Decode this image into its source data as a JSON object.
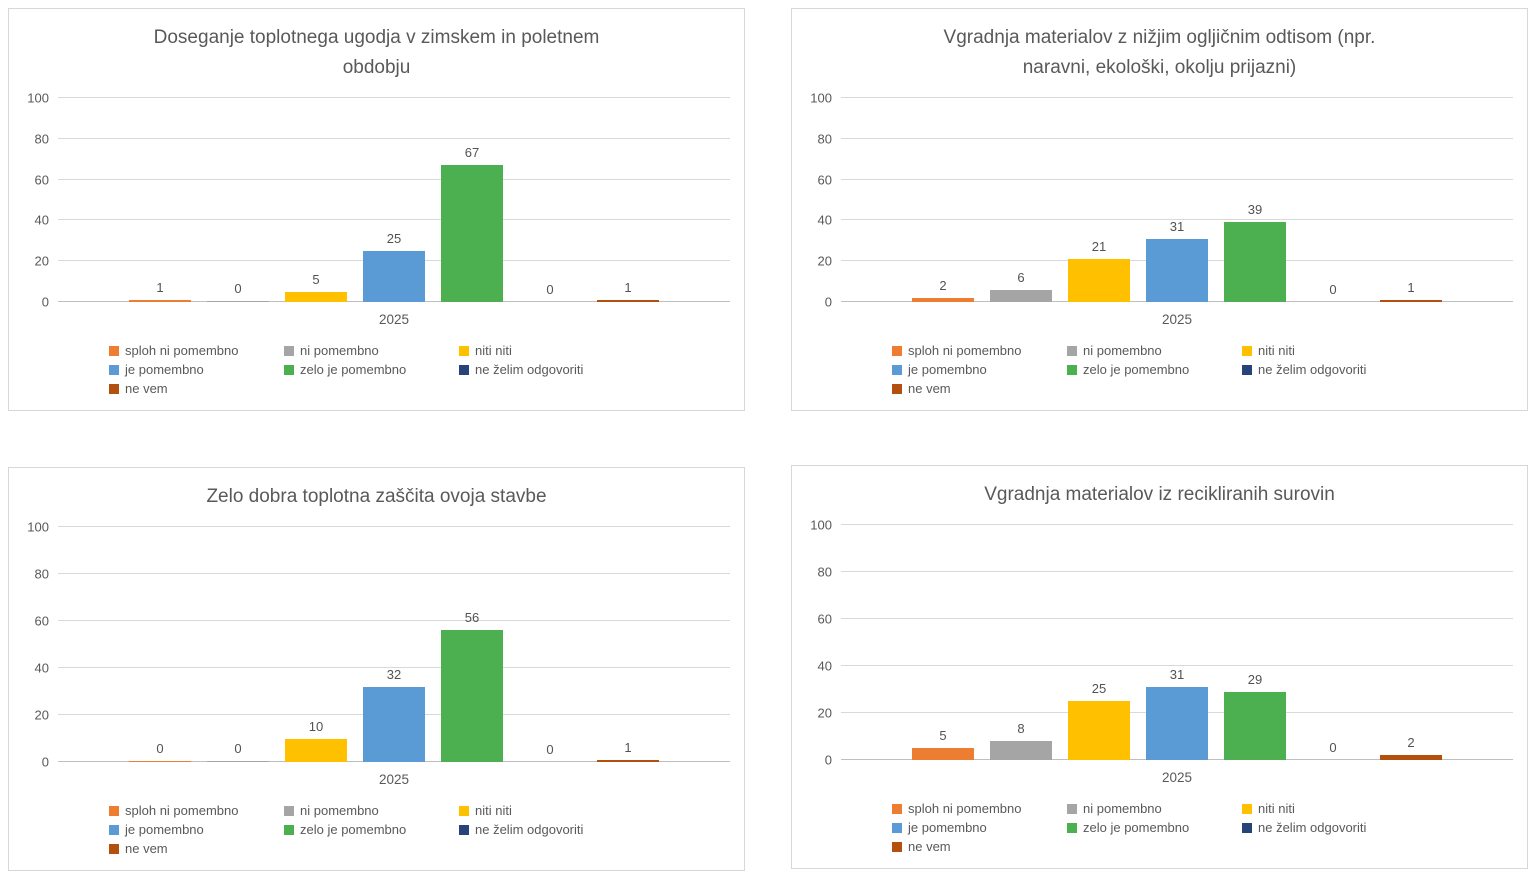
{
  "y_axis": {
    "ticks": [
      0,
      20,
      40,
      60,
      80,
      100
    ],
    "max": 100
  },
  "chart_data": [
    {
      "type": "bar",
      "title": "Doseganje toplotnega ugodja v zimskem in poletnem obdobju",
      "categories": [
        "2025"
      ],
      "ylim": [
        0,
        100
      ],
      "yticks": [
        0,
        20,
        40,
        60,
        80,
        100
      ],
      "grid": true,
      "legend_position": "bottom",
      "series": [
        {
          "name": "sploh ni pomembno",
          "color": "#ED7D31",
          "values": [
            1
          ]
        },
        {
          "name": "ni pomembno",
          "color": "#A5A5A5",
          "values": [
            0
          ]
        },
        {
          "name": "niti niti",
          "color": "#FFC000",
          "values": [
            5
          ]
        },
        {
          "name": "je pomembno",
          "color": "#5B9BD5",
          "values": [
            25
          ]
        },
        {
          "name": "zelo je pomembno",
          "color": "#4CAF50",
          "values": [
            67
          ]
        },
        {
          "name": "ne želim odgovoriti",
          "color": "#264478",
          "values": [
            0
          ]
        },
        {
          "name": "ne vem",
          "color": "#B4500D",
          "values": [
            1
          ]
        }
      ]
    },
    {
      "type": "bar",
      "title": "Vgradnja materialov z nižjim ogljičnim odtisom (npr. naravni, ekološki, okolju prijazni)",
      "categories": [
        "2025"
      ],
      "ylim": [
        0,
        100
      ],
      "yticks": [
        0,
        20,
        40,
        60,
        80,
        100
      ],
      "grid": true,
      "legend_position": "bottom",
      "series": [
        {
          "name": "sploh ni pomembno",
          "color": "#ED7D31",
          "values": [
            2
          ]
        },
        {
          "name": "ni pomembno",
          "color": "#A5A5A5",
          "values": [
            6
          ]
        },
        {
          "name": "niti niti",
          "color": "#FFC000",
          "values": [
            21
          ]
        },
        {
          "name": "je pomembno",
          "color": "#5B9BD5",
          "values": [
            31
          ]
        },
        {
          "name": "zelo je pomembno",
          "color": "#4CAF50",
          "values": [
            39
          ]
        },
        {
          "name": "ne želim odgovoriti",
          "color": "#264478",
          "values": [
            0
          ]
        },
        {
          "name": "ne vem",
          "color": "#B4500D",
          "values": [
            1
          ]
        }
      ]
    },
    {
      "type": "bar",
      "title": "Zelo dobra toplotna zaščita ovoja stavbe",
      "categories": [
        "2025"
      ],
      "ylim": [
        0,
        100
      ],
      "yticks": [
        0,
        20,
        40,
        60,
        80,
        100
      ],
      "grid": true,
      "legend_position": "bottom",
      "series": [
        {
          "name": "sploh ni pomembno",
          "color": "#ED7D31",
          "values": [
            0
          ]
        },
        {
          "name": "ni pomembno",
          "color": "#A5A5A5",
          "values": [
            0
          ]
        },
        {
          "name": "niti niti",
          "color": "#FFC000",
          "values": [
            10
          ]
        },
        {
          "name": "je pomembno",
          "color": "#5B9BD5",
          "values": [
            32
          ]
        },
        {
          "name": "zelo je pomembno",
          "color": "#4CAF50",
          "values": [
            56
          ]
        },
        {
          "name": "ne želim odgovoriti",
          "color": "#264478",
          "values": [
            0
          ]
        },
        {
          "name": "ne vem",
          "color": "#B4500D",
          "values": [
            1
          ]
        }
      ]
    },
    {
      "type": "bar",
      "title": "Vgradnja materialov iz recikliranih surovin",
      "categories": [
        "2025"
      ],
      "ylim": [
        0,
        100
      ],
      "yticks": [
        0,
        20,
        40,
        60,
        80,
        100
      ],
      "grid": true,
      "legend_position": "bottom",
      "series": [
        {
          "name": "sploh ni pomembno",
          "color": "#ED7D31",
          "values": [
            5
          ]
        },
        {
          "name": "ni pomembno",
          "color": "#A5A5A5",
          "values": [
            8
          ]
        },
        {
          "name": "niti niti",
          "color": "#FFC000",
          "values": [
            25
          ]
        },
        {
          "name": "je pomembno",
          "color": "#5B9BD5",
          "values": [
            31
          ]
        },
        {
          "name": "zelo je pomembno",
          "color": "#4CAF50",
          "values": [
            29
          ]
        },
        {
          "name": "ne želim odgovoriti",
          "color": "#264478",
          "values": [
            0
          ]
        },
        {
          "name": "ne vem",
          "color": "#B4500D",
          "values": [
            2
          ]
        }
      ]
    }
  ]
}
